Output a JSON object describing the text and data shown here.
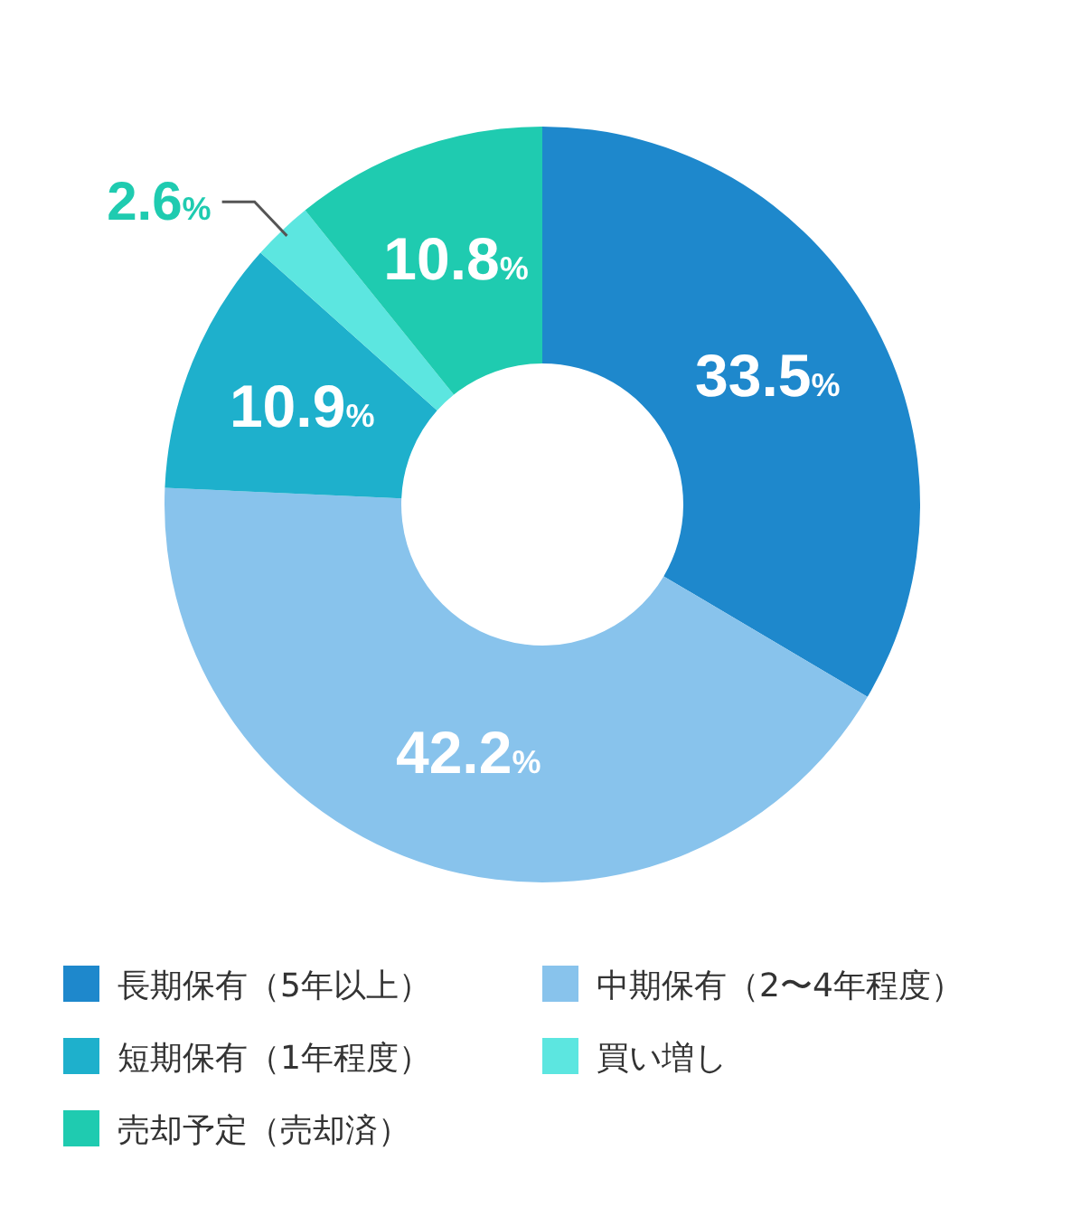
{
  "chart_data": {
    "type": "donut",
    "categories": [
      "長期保有（5年以上）",
      "中期保有（2〜4年程度）",
      "短期保有（1年程度）",
      "買い増し",
      "売却予定（売却済）"
    ],
    "values": [
      33.5,
      42.2,
      10.9,
      2.6,
      10.8
    ],
    "colors": [
      "#1e88cc",
      "#88c3ec",
      "#1eb0cc",
      "#5ce6e0",
      "#1fcbb0"
    ],
    "value_labels": [
      "33.5%",
      "42.2%",
      "10.9%",
      "2.6%",
      "10.8%"
    ],
    "legend": "bottom"
  }
}
